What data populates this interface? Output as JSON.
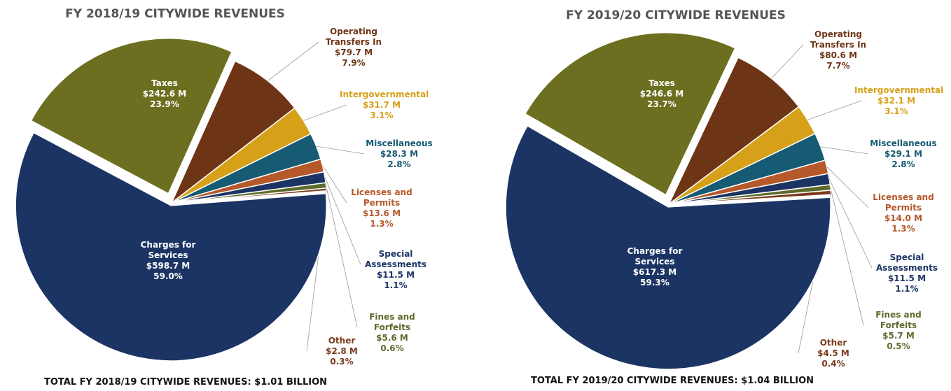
{
  "chart_data": [
    {
      "type": "pie",
      "title": "FY 2018/19 CITYWIDE REVENUES",
      "note": "TOTAL FY 2018/19 CITYWIDE REVENUES: $1.01 BILLION",
      "categories": [
        "Taxes",
        "Operating Transfers In",
        "Intergovernmental",
        "Miscellaneous",
        "Licenses and Permits",
        "Special Assessments",
        "Fines and Forfeits",
        "Other",
        "Charges for Services"
      ],
      "values": [
        242.6,
        79.7,
        31.7,
        28.3,
        13.6,
        11.5,
        5.6,
        2.8,
        598.7
      ],
      "value_labels": [
        "$242.6 M",
        "$79.7 M",
        "$31.7 M",
        "$28.3 M",
        "$13.6 M",
        "$11.5 M",
        "$5.6 M",
        "$2.8 M",
        "$598.7 M"
      ],
      "percents": [
        23.9,
        7.9,
        3.1,
        2.8,
        1.3,
        1.1,
        0.6,
        0.3,
        59.0
      ],
      "percent_labels": [
        "23.9%",
        "7.9%",
        "3.1%",
        "2.8%",
        "1.3%",
        "1.1%",
        "0.6%",
        "0.3%",
        "59.0%"
      ],
      "colors": [
        "#6b6f1f",
        "#6e3416",
        "#d6a019",
        "#165a73",
        "#b5582a",
        "#1b3463",
        "#5d6b2b",
        "#7b3a1b",
        "#1b3463"
      ]
    },
    {
      "type": "pie",
      "title": "FY 2019/20 CITYWIDE REVENUES",
      "note": "TOTAL FY 2019/20 CITYWIDE REVENUES: $1.04 BILLION",
      "categories": [
        "Taxes",
        "Operating Transfers In",
        "Intergovernmental",
        "Miscellaneous",
        "Licenses and Permits",
        "Special Assessments",
        "Fines and Forfeits",
        "Other",
        "Charges for Services"
      ],
      "values": [
        246.6,
        80.6,
        32.1,
        29.1,
        14.0,
        11.5,
        5.7,
        4.5,
        617.3
      ],
      "value_labels": [
        "$246.6 M",
        "$80.6 M",
        "$32.1 M",
        "$29.1 M",
        "$14.0 M",
        "$11.5 M",
        "$5.7 M",
        "$4.5 M",
        "$617.3 M"
      ],
      "percents": [
        23.7,
        7.7,
        3.1,
        2.8,
        1.3,
        1.1,
        0.5,
        0.4,
        59.3
      ],
      "percent_labels": [
        "23.7%",
        "7.7%",
        "3.1%",
        "2.8%",
        "1.3%",
        "1.1%",
        "0.5%",
        "0.4%",
        "59.3%"
      ],
      "colors": [
        "#6b6f1f",
        "#6e3416",
        "#d6a019",
        "#165a73",
        "#b5582a",
        "#1b3463",
        "#5d6b2b",
        "#7b3a1b",
        "#1b3463"
      ]
    }
  ]
}
